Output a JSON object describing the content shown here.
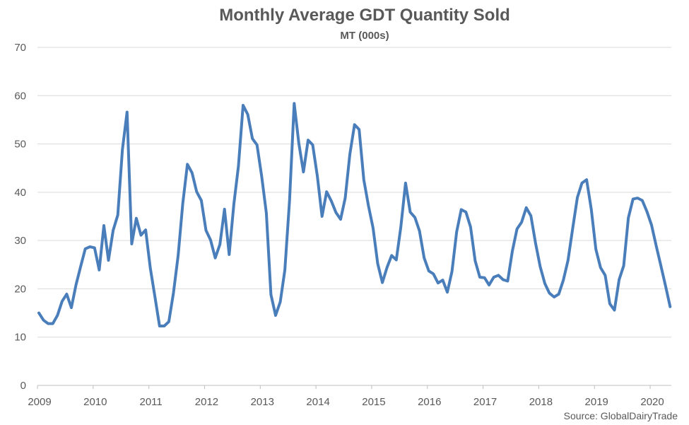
{
  "chart_data": {
    "type": "line",
    "title": "Monthly Average GDT Quantity Sold",
    "subtitle": "MT (000s)",
    "xlabel": "",
    "ylabel": "",
    "ylim": [
      0,
      70
    ],
    "yticks": [
      0,
      10,
      20,
      30,
      40,
      50,
      60,
      70
    ],
    "xtick_labels": [
      "2009",
      "2010",
      "2011",
      "2012",
      "2013",
      "2014",
      "2015",
      "2016",
      "2017",
      "2018",
      "2019",
      "2020"
    ],
    "x_start": "2009-01",
    "grid": "horizontal",
    "legend": "none",
    "series_color": "#4A7EBB",
    "series": [
      {
        "values": [
          15.0,
          13.5,
          12.8,
          12.8,
          14.5,
          17.4,
          18.9,
          16.1,
          20.8,
          24.6,
          28.3,
          28.7,
          28.5,
          23.9,
          33.1,
          25.9,
          32.1,
          35.3,
          48.8,
          56.6,
          29.3,
          34.6,
          31.1,
          32.2,
          24.4,
          18.4,
          12.3,
          12.3,
          13.2,
          19.2,
          26.9,
          37.6,
          45.8,
          44.0,
          40.1,
          38.3,
          32.1,
          30.1,
          26.4,
          29.2,
          36.5,
          27.1,
          37.5,
          45.4,
          58.0,
          56.1,
          51.1,
          49.8,
          43.3,
          35.7,
          18.8,
          14.5,
          17.3,
          23.9,
          38.2,
          58.4,
          50.2,
          44.2,
          50.8,
          49.8,
          43.3,
          35.0,
          40.1,
          38.2,
          35.8,
          34.4,
          38.8,
          47.9,
          54.0,
          53.0,
          42.6,
          37.2,
          32.6,
          25.2,
          21.3,
          24.4,
          26.9,
          26.0,
          32.9,
          41.9,
          35.9,
          34.8,
          32.0,
          26.4,
          23.7,
          23.1,
          21.2,
          21.8,
          19.3,
          23.6,
          31.8,
          36.4,
          35.9,
          32.8,
          25.8,
          22.4,
          22.3,
          20.8,
          22.4,
          22.8,
          21.9,
          21.6,
          27.8,
          32.4,
          33.8,
          36.8,
          35.1,
          29.5,
          24.6,
          21.1,
          19.1,
          18.3,
          18.9,
          21.8,
          25.9,
          32.5,
          38.9,
          41.9,
          42.6,
          36.5,
          28.2,
          24.4,
          22.8,
          16.9,
          15.6,
          21.9,
          24.8,
          34.7,
          38.6,
          38.8,
          38.3,
          36.0,
          33.2,
          28.9,
          24.8,
          20.6,
          16.3
        ]
      }
    ]
  },
  "source": "Source: GlobalDairyTrade"
}
